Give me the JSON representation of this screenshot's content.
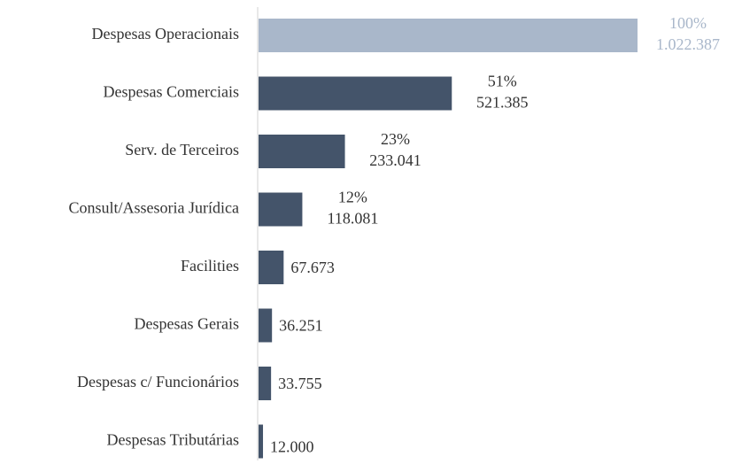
{
  "chart_data": {
    "type": "hbar",
    "categories": [
      "Despesas Operacionais",
      "Despesas Comerciais",
      "Serv. de Terceiros",
      "Consult/Assesoria Jurídica",
      "Facilities",
      "Despesas Gerais",
      "Despesas c/ Funcionários",
      "Despesas Tributárias"
    ],
    "values": [
      1022387,
      521385,
      233041,
      118081,
      67673,
      36251,
      33755,
      12000
    ],
    "value_labels": [
      "1.022.387",
      "521.385",
      "233.041",
      "118.081",
      "67.673",
      "36.251",
      "33.755",
      "12.000"
    ],
    "percent_labels": [
      "100%",
      "51%",
      "23%",
      "12%",
      null,
      null,
      null,
      null
    ],
    "colors": [
      "#a9b7ca",
      "#44546a",
      "#44546a",
      "#44546a",
      "#44546a",
      "#44546a",
      "#44546a",
      "#44546a"
    ]
  }
}
